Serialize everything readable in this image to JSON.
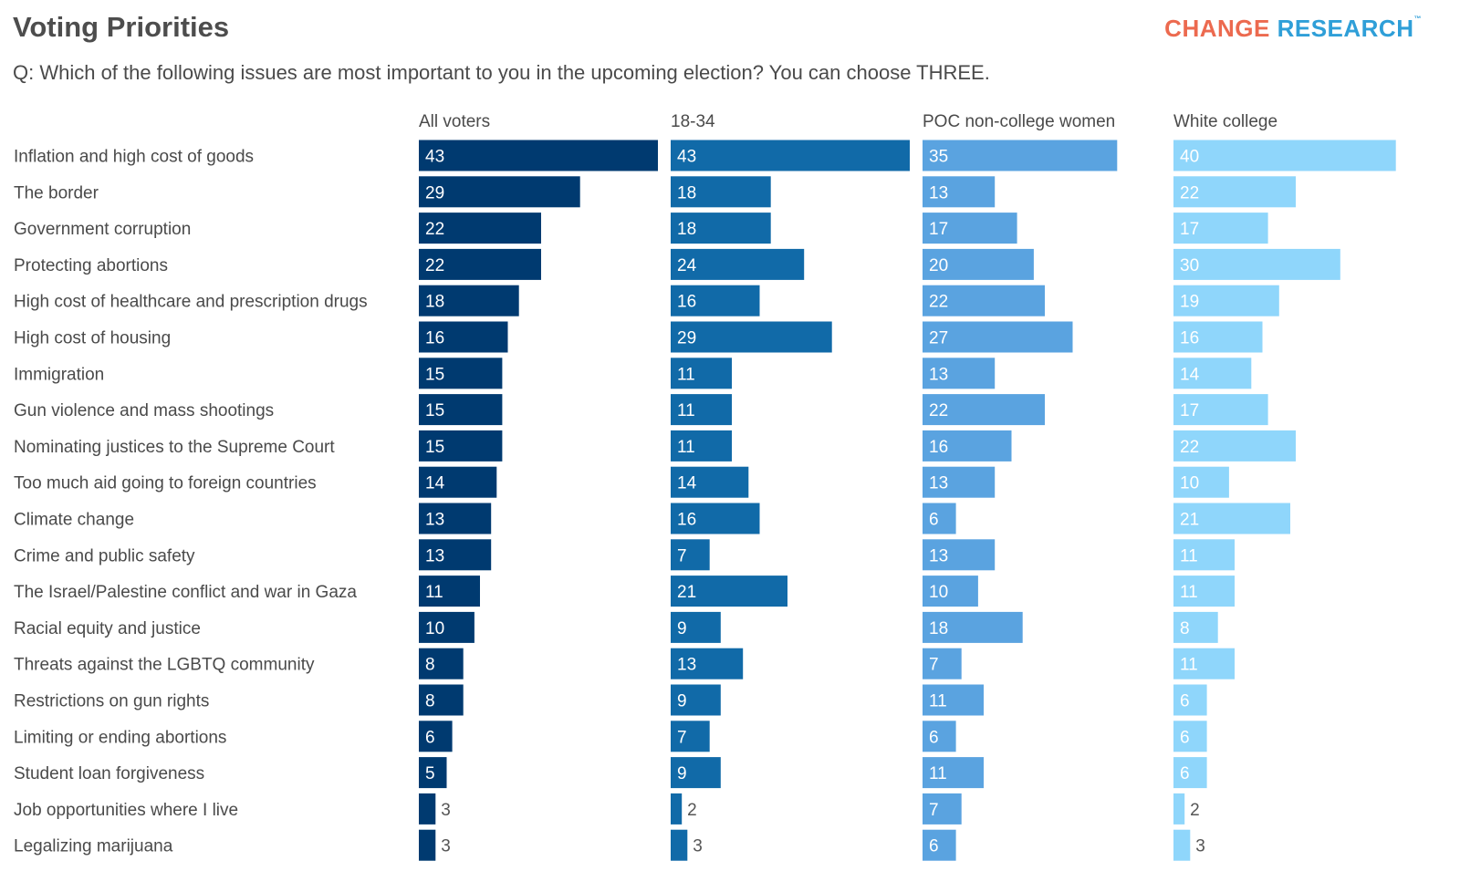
{
  "title": "Voting Priorities",
  "question": "Q: Which of the following issues are most important to you in the upcoming election? You can choose THREE.",
  "logo": {
    "word1": "CHANGE",
    "word2": "RESEARCH",
    "tm": "™"
  },
  "colors": {
    "logo_red": "#ec6a4f",
    "logo_blue": "#2f9fd8"
  },
  "chart_data": {
    "type": "bar",
    "orientation": "horizontal",
    "title": "Voting Priorities",
    "categories": [
      "Inflation and high cost of goods",
      "The border",
      "Government corruption",
      "Protecting abortions",
      "High cost of healthcare and prescription drugs",
      "High cost of housing",
      "Immigration",
      "Gun violence and mass shootings",
      "Nominating justices to the Supreme Court",
      "Too much aid going to foreign countries",
      "Climate change",
      "Crime and public safety",
      "The Israel/Palestine conflict and war in Gaza",
      "Racial equity and justice",
      "Threats against the LGBTQ community",
      "Restrictions on gun rights",
      "Limiting or ending abortions",
      "Student loan forgiveness",
      "Job opportunities where I live",
      "Legalizing marijuana"
    ],
    "series": [
      {
        "name": "All voters",
        "color": "#003a70",
        "values": [
          43,
          29,
          22,
          22,
          18,
          16,
          15,
          15,
          15,
          14,
          13,
          13,
          11,
          10,
          8,
          8,
          6,
          5,
          3,
          3
        ]
      },
      {
        "name": "18-34",
        "color": "#116aa8",
        "values": [
          43,
          18,
          18,
          24,
          16,
          29,
          11,
          11,
          11,
          14,
          16,
          7,
          21,
          9,
          13,
          9,
          7,
          9,
          2,
          3
        ]
      },
      {
        "name": "POC non-college women",
        "color": "#5aa3e0",
        "values": [
          35,
          13,
          17,
          20,
          22,
          27,
          13,
          22,
          16,
          13,
          6,
          13,
          10,
          18,
          7,
          11,
          6,
          11,
          7,
          6
        ]
      },
      {
        "name": "White college",
        "color": "#8fd6fb",
        "values": [
          40,
          22,
          17,
          30,
          19,
          16,
          14,
          17,
          22,
          10,
          21,
          11,
          11,
          8,
          11,
          6,
          6,
          6,
          2,
          3
        ]
      }
    ],
    "xlim": [
      0,
      43
    ]
  }
}
